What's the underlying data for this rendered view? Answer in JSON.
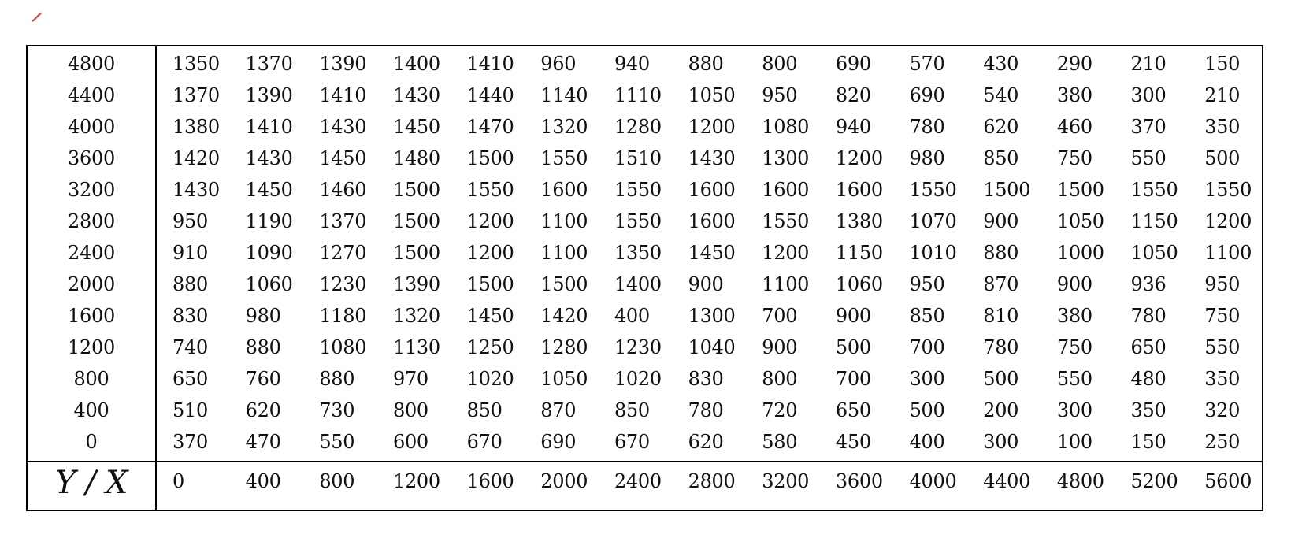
{
  "table": {
    "corner_label": "Y / X",
    "x_values": [
      "0",
      "400",
      "800",
      "1200",
      "1600",
      "2000",
      "2400",
      "2800",
      "3200",
      "3600",
      "4000",
      "4400",
      "4800",
      "5200",
      "5600"
    ],
    "rows": [
      {
        "y": "4800",
        "values": [
          "1350",
          "1370",
          "1390",
          "1400",
          "1410",
          "960",
          "940",
          "880",
          "800",
          "690",
          "570",
          "430",
          "290",
          "210",
          "150"
        ]
      },
      {
        "y": "4400",
        "values": [
          "1370",
          "1390",
          "1410",
          "1430",
          "1440",
          "1140",
          "1110",
          "1050",
          "950",
          "820",
          "690",
          "540",
          "380",
          "300",
          "210"
        ]
      },
      {
        "y": "4000",
        "values": [
          "1380",
          "1410",
          "1430",
          "1450",
          "1470",
          "1320",
          "1280",
          "1200",
          "1080",
          "940",
          "780",
          "620",
          "460",
          "370",
          "350"
        ]
      },
      {
        "y": "3600",
        "values": [
          "1420",
          "1430",
          "1450",
          "1480",
          "1500",
          "1550",
          "1510",
          "1430",
          "1300",
          "1200",
          "980",
          "850",
          "750",
          "550",
          "500"
        ]
      },
      {
        "y": "3200",
        "values": [
          "1430",
          "1450",
          "1460",
          "1500",
          "1550",
          "1600",
          "1550",
          "1600",
          "1600",
          "1600",
          "1550",
          "1500",
          "1500",
          "1550",
          "1550"
        ]
      },
      {
        "y": "2800",
        "values": [
          "950",
          "1190",
          "1370",
          "1500",
          "1200",
          "1100",
          "1550",
          "1600",
          "1550",
          "1380",
          "1070",
          "900",
          "1050",
          "1150",
          "1200"
        ]
      },
      {
        "y": "2400",
        "values": [
          "910",
          "1090",
          "1270",
          "1500",
          "1200",
          "1100",
          "1350",
          "1450",
          "1200",
          "1150",
          "1010",
          "880",
          "1000",
          "1050",
          "1100"
        ]
      },
      {
        "y": "2000",
        "values": [
          "880",
          "1060",
          "1230",
          "1390",
          "1500",
          "1500",
          "1400",
          "900",
          "1100",
          "1060",
          "950",
          "870",
          "900",
          "936",
          "950"
        ]
      },
      {
        "y": "1600",
        "values": [
          "830",
          "980",
          "1180",
          "1320",
          "1450",
          "1420",
          "400",
          "1300",
          "700",
          "900",
          "850",
          "810",
          "380",
          "780",
          "750"
        ]
      },
      {
        "y": "1200",
        "values": [
          "740",
          "880",
          "1080",
          "1130",
          "1250",
          "1280",
          "1230",
          "1040",
          "900",
          "500",
          "700",
          "780",
          "750",
          "650",
          "550"
        ]
      },
      {
        "y": "800",
        "values": [
          "650",
          "760",
          "880",
          "970",
          "1020",
          "1050",
          "1020",
          "830",
          "800",
          "700",
          "300",
          "500",
          "550",
          "480",
          "350"
        ]
      },
      {
        "y": "400",
        "values": [
          "510",
          "620",
          "730",
          "800",
          "850",
          "870",
          "850",
          "780",
          "720",
          "650",
          "500",
          "200",
          "300",
          "350",
          "320"
        ]
      },
      {
        "y": "0",
        "values": [
          "370",
          "470",
          "550",
          "600",
          "670",
          "690",
          "670",
          "620",
          "580",
          "450",
          "400",
          "300",
          "100",
          "150",
          "250"
        ]
      }
    ]
  },
  "icons": {
    "pen": "pen-icon",
    "pen_color": "#cc2222"
  }
}
